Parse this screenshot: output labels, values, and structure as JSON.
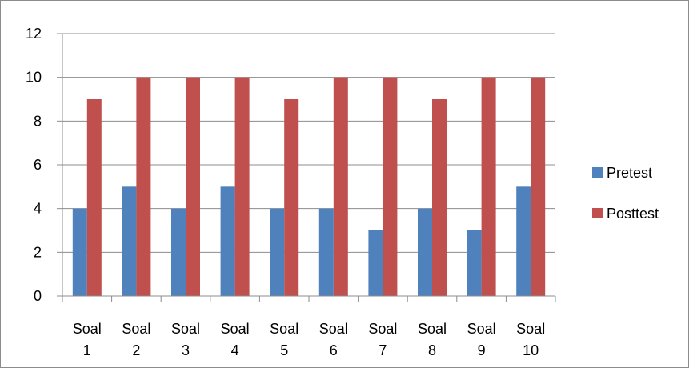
{
  "chart_data": {
    "type": "bar",
    "categories": [
      [
        "Soal",
        "1"
      ],
      [
        "Soal",
        "2"
      ],
      [
        "Soal",
        "3"
      ],
      [
        "Soal",
        "4"
      ],
      [
        "Soal",
        "5"
      ],
      [
        "Soal",
        "6"
      ],
      [
        "Soal",
        "7"
      ],
      [
        "Soal",
        "8"
      ],
      [
        "Soal",
        "9"
      ],
      [
        "Soal",
        "10"
      ]
    ],
    "series": [
      {
        "name": "Pretest",
        "color": "#4f81bd",
        "values": [
          4,
          5,
          4,
          5,
          4,
          4,
          3,
          4,
          3,
          5
        ]
      },
      {
        "name": "Posttest",
        "color": "#c0504d",
        "values": [
          9,
          10,
          10,
          10,
          9,
          10,
          10,
          9,
          10,
          10
        ]
      }
    ],
    "ylim": [
      0,
      12
    ],
    "yticks": [
      0,
      2,
      4,
      6,
      8,
      10,
      12
    ],
    "grid": true,
    "legend": "right"
  }
}
